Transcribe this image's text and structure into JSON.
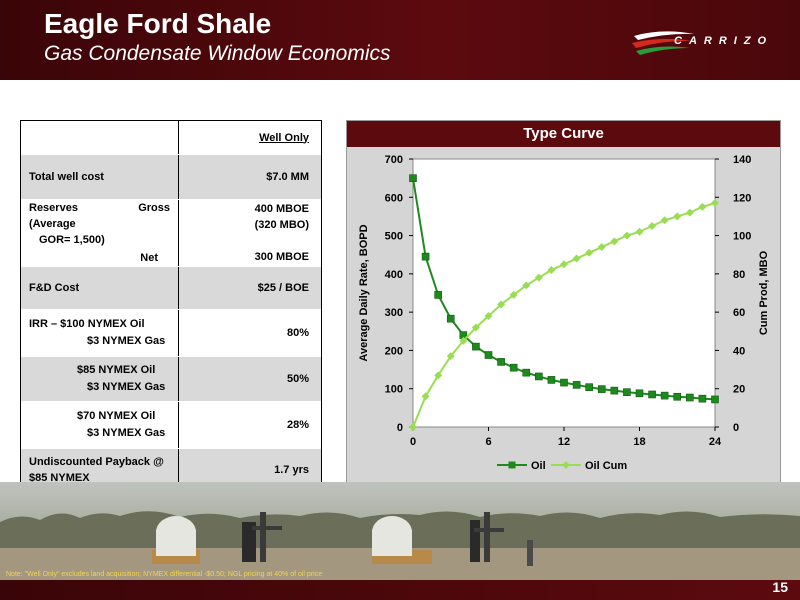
{
  "header": {
    "title": "Eagle Ford Shale",
    "subtitle": "Gas Condensate Window Economics",
    "logo_text": "CARRIZO"
  },
  "table": {
    "column_header": "Well Only",
    "rows": [
      {
        "label": "Total well cost",
        "value": "$7.0 MM"
      },
      {
        "label_reserves": "Reserves",
        "label_gross": "Gross",
        "label_avg": "(Average",
        "label_gor": "GOR= 1,500)",
        "label_net": "Net",
        "value_gross": "400 MBOE",
        "value_mbo": "(320 MBO)",
        "value_net": "300 MBOE"
      },
      {
        "label": "F&D Cost",
        "value": "$25 / BOE"
      },
      {
        "label_line1": "IRR  –  $100 NYMEX Oil",
        "label_line2": "$3 NYMEX Gas",
        "value": "80%"
      },
      {
        "label_line1": "$85 NYMEX Oil",
        "label_line2": "$3 NYMEX Gas",
        "value": "50%"
      },
      {
        "label_line1": "$70 NYMEX Oil",
        "label_line2": "$3 NYMEX Gas",
        "value": "28%"
      },
      {
        "label_line1": "Undiscounted Payback @",
        "label_line2": "$85 NYMEX",
        "value": "1.7 yrs"
      }
    ]
  },
  "chart_data": {
    "type": "line",
    "title": "Type Curve",
    "xlabel": "",
    "ylabel": "Average Daily Rate, BOPD",
    "y2label": "Cum Prod, MBO",
    "xlim": [
      0,
      24
    ],
    "ylim": [
      0,
      700
    ],
    "y2lim": [
      0,
      140
    ],
    "xticks": [
      0,
      6,
      12,
      18,
      24
    ],
    "yticks": [
      0,
      100,
      200,
      300,
      400,
      500,
      600,
      700
    ],
    "y2ticks": [
      0,
      20,
      40,
      60,
      80,
      100,
      120,
      140
    ],
    "grid": false,
    "legend": "bottom",
    "series": [
      {
        "name": "Oil",
        "axis": "left",
        "color": "#1e8a1e",
        "x": [
          0,
          1,
          2,
          3,
          4,
          5,
          6,
          7,
          8,
          9,
          10,
          11,
          12,
          13,
          14,
          15,
          16,
          17,
          18,
          19,
          20,
          21,
          22,
          23,
          24
        ],
        "values": [
          650,
          445,
          345,
          283,
          240,
          210,
          188,
          170,
          155,
          142,
          132,
          123,
          116,
          110,
          104,
          99,
          95,
          91,
          88,
          85,
          82,
          79,
          77,
          74,
          72
        ]
      },
      {
        "name": "Oil Cum",
        "axis": "right",
        "color": "#99dd55",
        "x": [
          0,
          1,
          2,
          3,
          4,
          5,
          6,
          7,
          8,
          9,
          10,
          11,
          12,
          13,
          14,
          15,
          16,
          17,
          18,
          19,
          20,
          21,
          22,
          23,
          24
        ],
        "values": [
          0,
          16,
          27,
          37,
          45,
          52,
          58,
          64,
          69,
          74,
          78,
          82,
          85,
          88,
          91,
          94,
          97,
          100,
          102,
          105,
          108,
          110,
          112,
          115,
          117
        ]
      }
    ]
  },
  "footer": {
    "note": "Note:     \"Well Only\" excludes land acquisition; NYMEX differential -$0.50; NGL pricing at 40% of oil price",
    "page_number": "15"
  }
}
